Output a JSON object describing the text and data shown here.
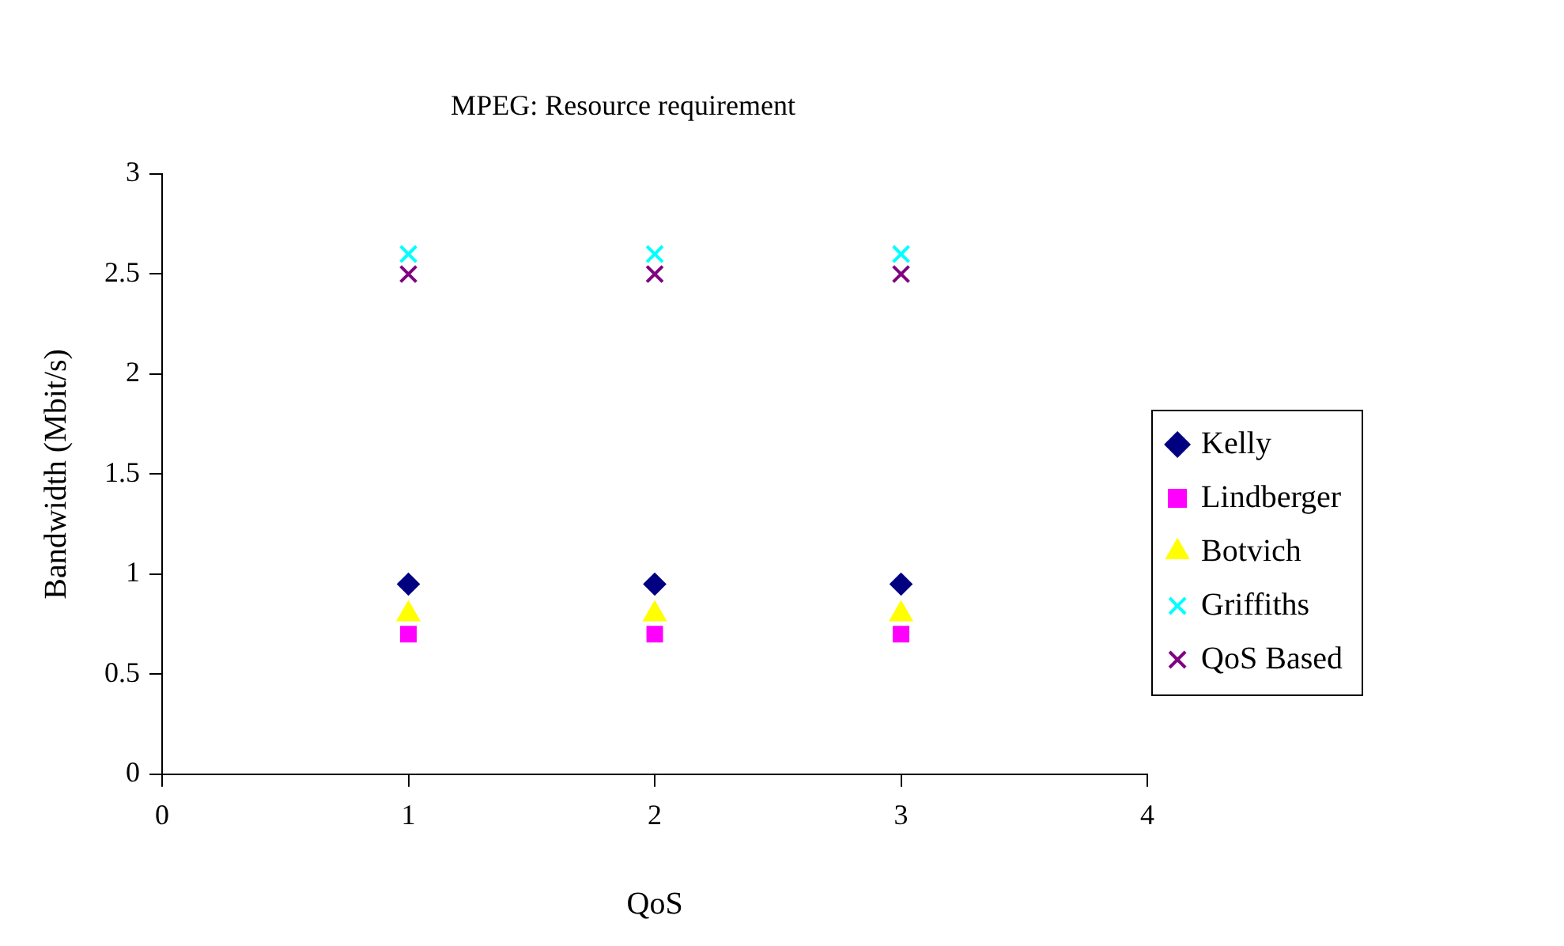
{
  "chart_data": {
    "type": "scatter",
    "title": "MPEG: Resource requirement",
    "xlabel": "QoS",
    "ylabel": "Bandwidth (Mbit/s)",
    "x": [
      1,
      2,
      3
    ],
    "series": [
      {
        "name": "Kelly",
        "color": "#000080",
        "marker": "diamond",
        "values": [
          0.95,
          0.95,
          0.95
        ]
      },
      {
        "name": "Lindberger",
        "color": "#ff00ff",
        "marker": "square",
        "values": [
          0.7,
          0.7,
          0.7
        ]
      },
      {
        "name": "Botvich",
        "color": "#ffff00",
        "marker": "triangle",
        "values": [
          0.8,
          0.8,
          0.8
        ]
      },
      {
        "name": "Griffiths",
        "color": "#00ffff",
        "marker": "cross",
        "values": [
          2.6,
          2.6,
          2.6
        ]
      },
      {
        "name": "QoS Based",
        "color": "#800080",
        "marker": "cross",
        "values": [
          2.5,
          2.5,
          2.5
        ]
      }
    ],
    "xlim": [
      0,
      4
    ],
    "xticks": [
      0,
      1,
      2,
      3,
      4
    ],
    "ylim": [
      0,
      3
    ],
    "yticks": [
      0,
      0.5,
      1,
      1.5,
      2,
      2.5,
      3
    ],
    "grid": false,
    "legend": "right"
  }
}
